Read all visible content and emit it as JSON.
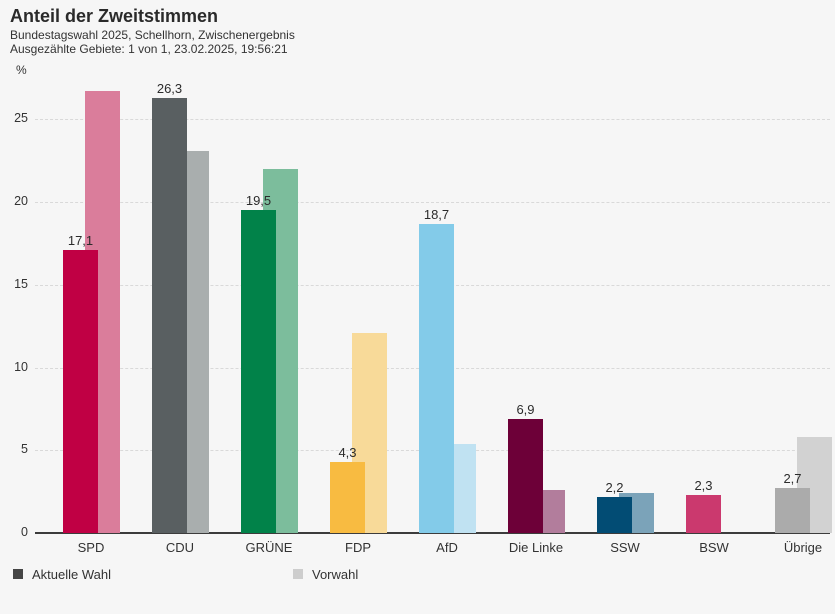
{
  "header": {
    "title": "Anteil der Zweitstimmen",
    "subtitle1": "Bundestagswahl 2025, Schellhorn, Zwischenergebnis",
    "subtitle2": "Ausgezählte Gebiete: 1 von 1, 23.02.2025, 19:56:21"
  },
  "chart_data": {
    "type": "bar",
    "title": "Anteil der Zweitstimmen",
    "subtitle": "Bundestagswahl 2025, Schellhorn, Zwischenergebnis",
    "status_line": "Ausgezählte Gebiete: 1 von 1, 23.02.2025, 19:56:21",
    "unit_label": "%",
    "categories": [
      "SPD",
      "CDU",
      "GRÜNE",
      "FDP",
      "AfD",
      "Die Linke",
      "SSW",
      "BSW",
      "Übrige"
    ],
    "slugs": [
      "spd",
      "cdu",
      "gruene",
      "fdp",
      "afd",
      "die-linke",
      "ssw",
      "bsw",
      "uebrige"
    ],
    "series": [
      {
        "name": "Aktuelle Wahl",
        "values": [
          17.1,
          26.3,
          19.5,
          4.3,
          18.7,
          6.9,
          2.2,
          2.3,
          2.7
        ],
        "labels": [
          "17,1",
          "26,3",
          "19,5",
          "4,3",
          "18,7",
          "6,9",
          "2,2",
          "2,3",
          "2,7"
        ],
        "colors": [
          "#c00044",
          "#595f61",
          "#018249",
          "#f8bb41",
          "#83cbe9",
          "#6d0038",
          "#024c74",
          "#cb396e",
          "#ababab"
        ]
      },
      {
        "name": "Vorwahl",
        "values": [
          26.7,
          23.1,
          22.0,
          12.1,
          5.4,
          2.6,
          2.4,
          null,
          5.8
        ],
        "labels": [
          null,
          null,
          null,
          null,
          null,
          null,
          null,
          null,
          null
        ],
        "colors": [
          "#da7d9b",
          "#a9aeae",
          "#7cbd9c",
          "#f8da99",
          "#c0e2f2",
          "#b27d9c",
          "#7ba3b9",
          null,
          "#d2d2d2"
        ]
      }
    ],
    "ylim": [
      0,
      27.5
    ],
    "yticks": [
      0,
      5,
      10,
      15,
      20,
      25
    ],
    "grid": "horizontal-dashed",
    "legend_position": "bottom",
    "decimal_separator": ","
  },
  "legend": {
    "current_label": "Aktuelle Wahl",
    "current_color": "#454545",
    "previous_label": "Vorwahl",
    "previous_color": "#cdcdcd"
  },
  "colors": {
    "background": "#f6f6f6",
    "axis": "#3c3c3c",
    "gridline": "#d9d9d9",
    "text": "#333333"
  }
}
